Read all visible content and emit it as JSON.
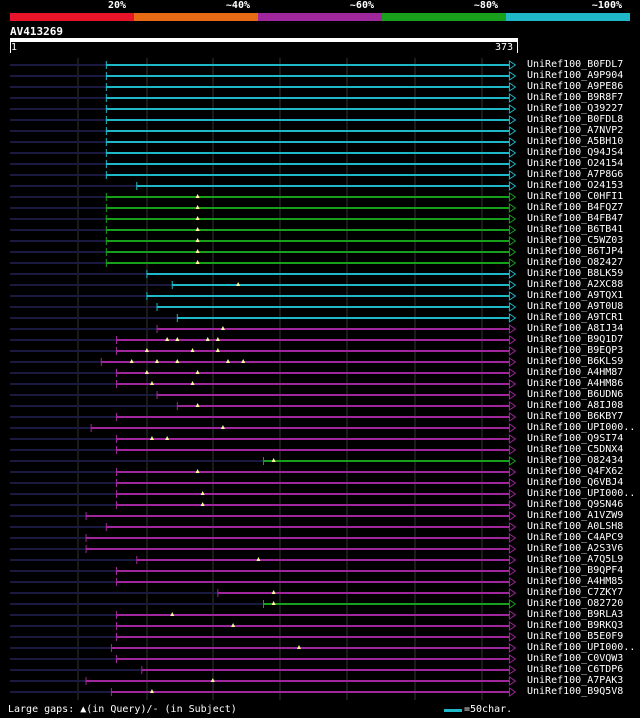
{
  "legend": [
    {
      "label": "20%",
      "color": "#e8142a"
    },
    {
      "label": "~40%",
      "color": "#e86a14"
    },
    {
      "label": "~60%",
      "color": "#a0269c"
    },
    {
      "label": "~80%",
      "color": "#18a01c"
    },
    {
      "label": "~100%",
      "color": "#1fb8c8"
    }
  ],
  "query": {
    "name": "AV413269",
    "start_label": "1",
    "end_label": "373"
  },
  "hits": [
    {
      "id": "UniRef100_B0FDL7",
      "color": "cyan",
      "start": 0.19,
      "arrow": true,
      "markers": []
    },
    {
      "id": "UniRef100_A9P904",
      "color": "cyan",
      "start": 0.19,
      "arrow": true,
      "markers": []
    },
    {
      "id": "UniRef100_A9PE86",
      "color": "cyan",
      "start": 0.19,
      "arrow": true,
      "markers": []
    },
    {
      "id": "UniRef100_B9R8F7",
      "color": "cyan",
      "start": 0.19,
      "arrow": true,
      "markers": []
    },
    {
      "id": "UniRef100_Q39227",
      "color": "cyan",
      "start": 0.19,
      "arrow": true,
      "markers": []
    },
    {
      "id": "UniRef100_B0FDL8",
      "color": "cyan",
      "start": 0.19,
      "arrow": true,
      "markers": []
    },
    {
      "id": "UniRef100_A7NVP2",
      "color": "cyan",
      "start": 0.19,
      "arrow": true,
      "markers": []
    },
    {
      "id": "UniRef100_A5BH10",
      "color": "cyan",
      "start": 0.19,
      "arrow": true,
      "markers": []
    },
    {
      "id": "UniRef100_Q94JS4",
      "color": "cyan",
      "start": 0.19,
      "arrow": true,
      "markers": []
    },
    {
      "id": "UniRef100_O24154",
      "color": "cyan",
      "start": 0.19,
      "arrow": true,
      "markers": []
    },
    {
      "id": "UniRef100_A7P8G6",
      "color": "cyan",
      "start": 0.19,
      "arrow": true,
      "markers": []
    },
    {
      "id": "UniRef100_O24153",
      "color": "cyan",
      "start": 0.25,
      "arrow": true,
      "markers": []
    },
    {
      "id": "UniRef100_C0HFI1",
      "color": "green",
      "start": 0.19,
      "arrow": true,
      "markers": [
        0.37
      ]
    },
    {
      "id": "UniRef100_B4FQZ7",
      "color": "green",
      "start": 0.19,
      "arrow": true,
      "markers": [
        0.37
      ]
    },
    {
      "id": "UniRef100_B4FB47",
      "color": "green",
      "start": 0.19,
      "arrow": true,
      "markers": [
        0.37
      ]
    },
    {
      "id": "UniRef100_B6TB41",
      "color": "green",
      "start": 0.19,
      "arrow": true,
      "markers": [
        0.37
      ]
    },
    {
      "id": "UniRef100_C5WZ03",
      "color": "green",
      "start": 0.19,
      "arrow": true,
      "markers": [
        0.37
      ]
    },
    {
      "id": "UniRef100_B6TJP4",
      "color": "green",
      "start": 0.19,
      "arrow": true,
      "markers": [
        0.37
      ]
    },
    {
      "id": "UniRef100_O82427",
      "color": "green",
      "start": 0.19,
      "arrow": true,
      "markers": [
        0.37
      ]
    },
    {
      "id": "UniRef100_B8LK59",
      "color": "cyan",
      "start": 0.27,
      "arrow": true,
      "markers": []
    },
    {
      "id": "UniRef100_A2XC88",
      "color": "cyan",
      "start": 0.32,
      "arrow": true,
      "markers": [
        0.45
      ]
    },
    {
      "id": "UniRef100_A9TQX1",
      "color": "cyan",
      "start": 0.27,
      "arrow": true,
      "markers": []
    },
    {
      "id": "UniRef100_A9T0U8",
      "color": "cyan",
      "start": 0.29,
      "arrow": true,
      "markers": []
    },
    {
      "id": "UniRef100_A9TCR1",
      "color": "cyan",
      "start": 0.33,
      "arrow": true,
      "markers": []
    },
    {
      "id": "UniRef100_A8IJ34",
      "color": "purple",
      "start": 0.29,
      "arrow": true,
      "markers": [
        0.42
      ]
    },
    {
      "id": "UniRef100_B9Q1D7",
      "color": "purple",
      "start": 0.21,
      "arrow": true,
      "markers": [
        0.31,
        0.33,
        0.39,
        0.41
      ]
    },
    {
      "id": "UniRef100_B9EQP3",
      "color": "purple",
      "start": 0.21,
      "arrow": true,
      "markers": [
        0.27,
        0.36,
        0.41
      ]
    },
    {
      "id": "UniRef100_B6KLS9",
      "color": "purple",
      "start": 0.18,
      "arrow": true,
      "markers": [
        0.24,
        0.29,
        0.33,
        0.43,
        0.46
      ]
    },
    {
      "id": "UniRef100_A4HM87",
      "color": "purple",
      "start": 0.21,
      "arrow": true,
      "markers": [
        0.27,
        0.37
      ]
    },
    {
      "id": "UniRef100_A4HM86",
      "color": "purple",
      "start": 0.21,
      "arrow": true,
      "markers": [
        0.28,
        0.36
      ]
    },
    {
      "id": "UniRef100_B6UDN6",
      "color": "purple",
      "start": 0.29,
      "arrow": true,
      "markers": []
    },
    {
      "id": "UniRef100_A8IJ08",
      "color": "purple",
      "start": 0.33,
      "arrow": true,
      "markers": [
        0.37
      ]
    },
    {
      "id": "UniRef100_B6KBY7",
      "color": "purple",
      "start": 0.21,
      "arrow": true,
      "markers": []
    },
    {
      "id": "UniRef100_UPI000..",
      "color": "purple",
      "start": 0.16,
      "arrow": true,
      "markers": [
        0.42
      ]
    },
    {
      "id": "UniRef100_Q9SI74",
      "color": "purple",
      "start": 0.21,
      "arrow": true,
      "markers": [
        0.28,
        0.31
      ]
    },
    {
      "id": "UniRef100_C5DNX4",
      "color": "purple",
      "start": 0.21,
      "arrow": true,
      "markers": []
    },
    {
      "id": "UniRef100_O82434",
      "color": "green",
      "start": 0.5,
      "arrow": true,
      "markers": [
        0.52
      ]
    },
    {
      "id": "UniRef100_Q4FX62",
      "color": "purple",
      "start": 0.21,
      "arrow": true,
      "markers": [
        0.37
      ]
    },
    {
      "id": "UniRef100_Q6VBJ4",
      "color": "purple",
      "start": 0.21,
      "arrow": true,
      "markers": []
    },
    {
      "id": "UniRef100_UPI000..",
      "color": "purple",
      "start": 0.21,
      "arrow": true,
      "markers": [
        0.38
      ]
    },
    {
      "id": "UniRef100_Q9SN46",
      "color": "purple",
      "start": 0.21,
      "arrow": true,
      "markers": [
        0.38
      ]
    },
    {
      "id": "UniRef100_A1VZW9",
      "color": "purple",
      "start": 0.15,
      "arrow": true,
      "markers": []
    },
    {
      "id": "UniRef100_A0LSH8",
      "color": "purple",
      "start": 0.19,
      "arrow": true,
      "markers": []
    },
    {
      "id": "UniRef100_C4APC9",
      "color": "purple",
      "start": 0.15,
      "arrow": true,
      "markers": []
    },
    {
      "id": "UniRef100_A2S3V6",
      "color": "purple",
      "start": 0.15,
      "arrow": true,
      "markers": []
    },
    {
      "id": "UniRef100_A7Q5L9",
      "color": "purple",
      "start": 0.25,
      "arrow": true,
      "markers": [
        0.49
      ]
    },
    {
      "id": "UniRef100_B9QPF4",
      "color": "purple",
      "start": 0.21,
      "arrow": true,
      "markers": []
    },
    {
      "id": "UniRef100_A4HM85",
      "color": "purple",
      "start": 0.21,
      "arrow": true,
      "markers": []
    },
    {
      "id": "UniRef100_C7ZKY7",
      "color": "purple",
      "start": 0.41,
      "arrow": true,
      "markers": [
        0.52
      ]
    },
    {
      "id": "UniRef100_O82720",
      "color": "green",
      "start": 0.5,
      "arrow": true,
      "markers": [
        0.52
      ]
    },
    {
      "id": "UniRef100_B9RLA3",
      "color": "purple",
      "start": 0.21,
      "arrow": true,
      "markers": [
        0.32
      ]
    },
    {
      "id": "UniRef100_B9RKQ3",
      "color": "purple",
      "start": 0.21,
      "arrow": true,
      "markers": [
        0.44
      ]
    },
    {
      "id": "UniRef100_B5E0F9",
      "color": "purple",
      "start": 0.21,
      "arrow": true,
      "markers": []
    },
    {
      "id": "UniRef100_UPI000..",
      "color": "purple",
      "start": 0.2,
      "arrow": true,
      "markers": [
        0.57
      ]
    },
    {
      "id": "UniRef100_C0VQW3",
      "color": "purple",
      "start": 0.21,
      "arrow": true,
      "markers": []
    },
    {
      "id": "UniRef100_C6TDP6",
      "color": "purple",
      "start": 0.26,
      "arrow": true,
      "markers": []
    },
    {
      "id": "UniRef100_A7PAK3",
      "color": "purple",
      "start": 0.15,
      "arrow": true,
      "markers": [
        0.4
      ]
    },
    {
      "id": "UniRef100_B9Q5V8",
      "color": "purple",
      "start": 0.2,
      "arrow": true,
      "markers": [
        0.28
      ]
    }
  ],
  "colors": {
    "cyan": "#1fb8c8",
    "green": "#18a01c",
    "purple": "#a0269c",
    "grid": "#333333",
    "marker": "#ffff99"
  },
  "footer": {
    "gaps_text": "Large gaps: ▲(in Query)/- (in Subject)",
    "scale_text": "=50char."
  }
}
